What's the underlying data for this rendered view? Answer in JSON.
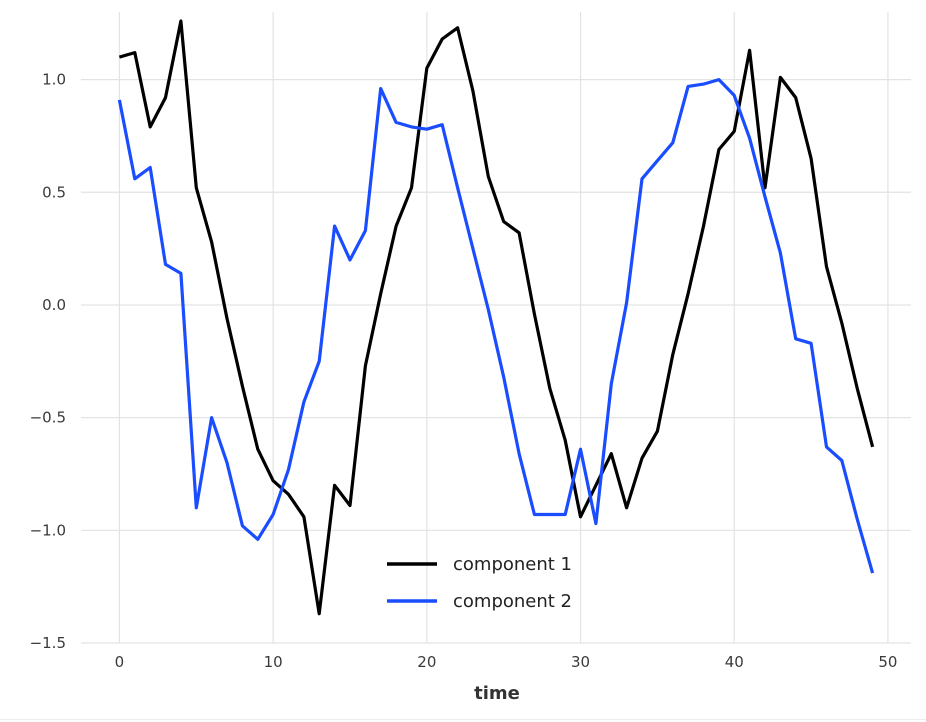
{
  "chart_data": {
    "type": "line",
    "title": "",
    "xlabel": "time",
    "ylabel": "",
    "xlim": [
      -2.5,
      51.5
    ],
    "ylim": [
      -1.5,
      1.3
    ],
    "xticks": [
      0,
      10,
      20,
      30,
      40,
      50
    ],
    "xtick_labels": [
      "0",
      "10",
      "20",
      "30",
      "40",
      "50"
    ],
    "yticks": [
      -1.5,
      -1.0,
      -0.5,
      0.0,
      0.5,
      1.0
    ],
    "ytick_labels": [
      "−1.5",
      "−1.0",
      "−0.5",
      "0.0",
      "0.5",
      "1.0"
    ],
    "grid": true,
    "legend_position": "lower-center",
    "x": [
      0,
      1,
      2,
      3,
      4,
      5,
      6,
      7,
      8,
      9,
      10,
      11,
      12,
      13,
      14,
      15,
      16,
      17,
      18,
      19,
      20,
      21,
      22,
      23,
      24,
      25,
      26,
      27,
      28,
      29,
      30,
      31,
      32,
      33,
      34,
      35,
      36,
      37,
      38,
      39,
      40,
      41,
      42,
      43,
      44,
      45,
      46,
      47,
      48,
      49
    ],
    "series": [
      {
        "name": "component 1",
        "color": "#000000",
        "values": [
          1.1,
          1.12,
          0.79,
          0.92,
          1.26,
          0.52,
          0.28,
          -0.06,
          -0.36,
          -0.64,
          -0.78,
          -0.84,
          -0.94,
          -1.37,
          -0.8,
          -0.89,
          -0.27,
          0.05,
          0.35,
          0.52,
          1.05,
          1.18,
          1.23,
          0.95,
          0.57,
          0.37,
          0.32,
          -0.04,
          -0.37,
          -0.6,
          -0.94,
          -0.8,
          -0.66,
          -0.9,
          -0.68,
          -0.56,
          -0.22,
          0.05,
          0.35,
          0.69,
          0.77,
          1.13,
          0.52,
          1.01,
          0.92,
          0.65,
          0.17,
          -0.08,
          -0.37,
          -0.63
        ]
      },
      {
        "name": "component 2",
        "color": "#1a4dff",
        "values": [
          0.91,
          0.56,
          0.61,
          0.18,
          0.14,
          -0.9,
          -0.5,
          -0.7,
          -0.98,
          -1.04,
          -0.93,
          -0.73,
          -0.43,
          -0.25,
          0.35,
          0.2,
          0.33,
          0.96,
          0.81,
          0.79,
          0.78,
          0.8,
          0.52,
          0.25,
          -0.02,
          -0.32,
          -0.66,
          -0.93,
          -0.93,
          -0.93,
          -0.64,
          -0.97,
          -0.35,
          0.01,
          0.56,
          0.64,
          0.72,
          0.97,
          0.98,
          1.0,
          0.93,
          0.74,
          0.48,
          0.23,
          -0.15,
          -0.17,
          -0.63,
          -0.69,
          -0.95,
          -1.19
        ]
      }
    ]
  }
}
